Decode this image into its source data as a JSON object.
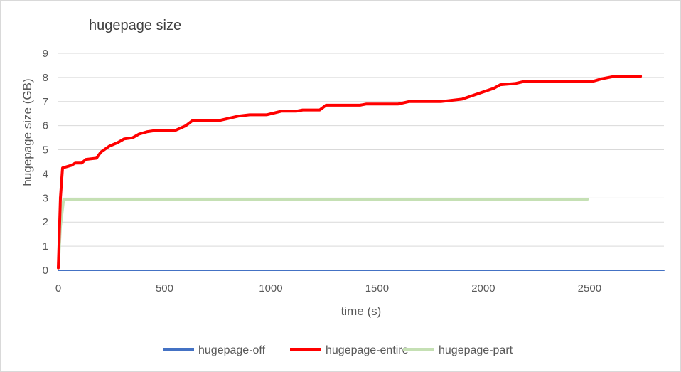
{
  "chart_data": {
    "type": "line",
    "title": "hugepage size",
    "xlabel": "time (s)",
    "ylabel": "hugepage size (GB)",
    "xlim": [
      0,
      2850
    ],
    "ylim": [
      0,
      9
    ],
    "x_ticks": [
      0,
      500,
      1000,
      1500,
      2000,
      2500
    ],
    "y_ticks": [
      0,
      1,
      2,
      3,
      4,
      5,
      6,
      7,
      8,
      9
    ],
    "grid": "horizontal",
    "legend_position": "bottom",
    "series": [
      {
        "name": "hugepage-off",
        "color": "#4472c4",
        "points": [
          [
            0,
            0.0
          ],
          [
            2850,
            0.0
          ]
        ]
      },
      {
        "name": "hugepage-entire",
        "color": "#ff0000",
        "points": [
          [
            0,
            0.1
          ],
          [
            10,
            3.0
          ],
          [
            20,
            4.25
          ],
          [
            40,
            4.3
          ],
          [
            60,
            4.35
          ],
          [
            80,
            4.45
          ],
          [
            110,
            4.45
          ],
          [
            130,
            4.6
          ],
          [
            180,
            4.65
          ],
          [
            200,
            4.9
          ],
          [
            240,
            5.15
          ],
          [
            280,
            5.3
          ],
          [
            310,
            5.45
          ],
          [
            350,
            5.5
          ],
          [
            380,
            5.65
          ],
          [
            420,
            5.75
          ],
          [
            460,
            5.8
          ],
          [
            550,
            5.8
          ],
          [
            600,
            6.0
          ],
          [
            630,
            6.2
          ],
          [
            750,
            6.2
          ],
          [
            800,
            6.3
          ],
          [
            850,
            6.4
          ],
          [
            900,
            6.45
          ],
          [
            980,
            6.45
          ],
          [
            1050,
            6.6
          ],
          [
            1120,
            6.6
          ],
          [
            1150,
            6.65
          ],
          [
            1230,
            6.65
          ],
          [
            1260,
            6.85
          ],
          [
            1420,
            6.85
          ],
          [
            1450,
            6.9
          ],
          [
            1600,
            6.9
          ],
          [
            1650,
            7.0
          ],
          [
            1800,
            7.0
          ],
          [
            1900,
            7.1
          ],
          [
            2000,
            7.4
          ],
          [
            2050,
            7.55
          ],
          [
            2080,
            7.7
          ],
          [
            2150,
            7.75
          ],
          [
            2200,
            7.85
          ],
          [
            2520,
            7.85
          ],
          [
            2560,
            7.95
          ],
          [
            2620,
            8.05
          ],
          [
            2740,
            8.05
          ]
        ]
      },
      {
        "name": "hugepage-part",
        "color": "#c5e0b4",
        "points": [
          [
            0,
            0.1
          ],
          [
            10,
            1.8
          ],
          [
            25,
            2.95
          ],
          [
            2490,
            2.95
          ]
        ]
      }
    ]
  }
}
